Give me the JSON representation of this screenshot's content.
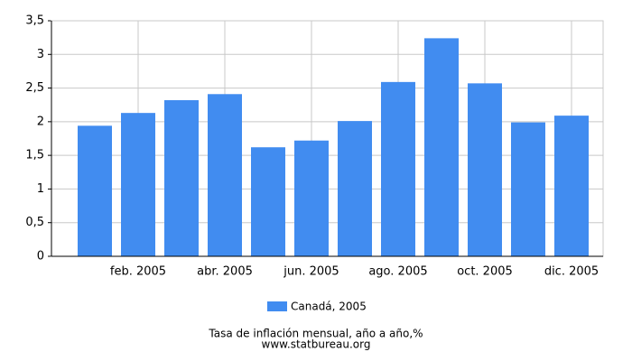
{
  "chart_data": {
    "type": "bar",
    "title": "Tasa de inflación mensual, año a año,%",
    "source": "www.statbureau.org",
    "categories": [
      null,
      "feb. 2005",
      null,
      "abr. 2005",
      null,
      "jun. 2005",
      null,
      "ago. 2005",
      null,
      "oct. 2005",
      null,
      "dic. 2005"
    ],
    "series": [
      {
        "name": "Canadá, 2005",
        "color": "#418cf0",
        "values": [
          1.94,
          2.13,
          2.32,
          2.41,
          1.62,
          1.72,
          2.01,
          2.59,
          3.24,
          2.57,
          1.99,
          2.09
        ]
      }
    ],
    "ylim": [
      0,
      3.5
    ],
    "yticks": [
      0,
      {
        "value": 0.5,
        "label": "0,5"
      },
      1,
      {
        "value": 1.5,
        "label": "1,5"
      },
      2,
      {
        "value": 2.5,
        "label": "2,5"
      },
      3,
      {
        "value": 3.5,
        "label": "3,5"
      }
    ],
    "grid": true
  }
}
